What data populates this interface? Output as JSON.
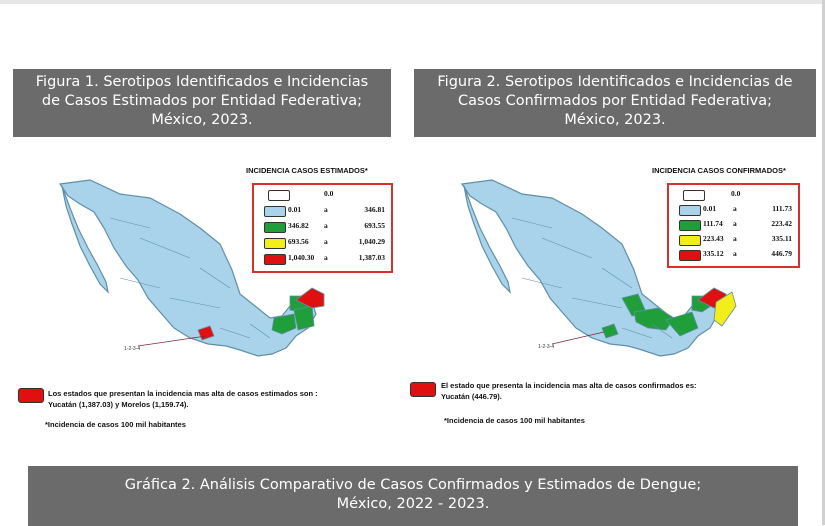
{
  "figure1": {
    "title_lines": [
      "Figura 1. Serotipos Identificados e Incidencias",
      "de Casos Estimados por Entidad Federativa;",
      "México, 2023."
    ],
    "legend_title": "INCIDENCIA CASOS ESTIMADOS*",
    "legend_rows": [
      {
        "color": "#ffffff",
        "low": "",
        "sep": "",
        "high": "",
        "zero": "0.0"
      },
      {
        "color": "#a9d3ea",
        "low": "0.01",
        "sep": "a",
        "high": "346.81"
      },
      {
        "color": "#1f9e3a",
        "low": "346.82",
        "sep": "a",
        "high": "693.55"
      },
      {
        "color": "#f2ee1a",
        "low": "693.56",
        "sep": "a",
        "high": "1,040.29"
      },
      {
        "color": "#e01010",
        "low": "1,040.30",
        "sep": "a",
        "high": "1,387.03"
      }
    ],
    "note_lines": [
      "Los estados  que presentan la incidencia mas alta de casos estimados son :",
      "Yucatán (1,387.03) y Morelos (1,159.74)."
    ],
    "footnote": "*Incidencia de casos 100 mil habitantes",
    "callout": "1-2-3-4"
  },
  "figure2": {
    "title_lines": [
      "Figura 2. Serotipos Identificados e Incidencias de",
      "Casos Confirmados por Entidad Federativa;",
      "México, 2023."
    ],
    "legend_title": "INCIDENCIA CASOS CONFIRMADOS*",
    "legend_rows": [
      {
        "color": "#ffffff",
        "low": "",
        "sep": "",
        "high": "",
        "zero": "0.0"
      },
      {
        "color": "#a9d3ea",
        "low": "0.01",
        "sep": "a",
        "high": "111.73"
      },
      {
        "color": "#1f9e3a",
        "low": "111.74",
        "sep": "a",
        "high": "223.42"
      },
      {
        "color": "#f2ee1a",
        "low": "223.43",
        "sep": "a",
        "high": "335.11"
      },
      {
        "color": "#e01010",
        "low": "335.12",
        "sep": "a",
        "high": "446.79"
      }
    ],
    "note_lines": [
      "El estado que presenta la incidencia mas alta de casos confirmados es:",
      "Yucatán (446.79)."
    ],
    "footnote": "*Incidencia de casos 100 mil habitantes",
    "callout": "1-2-3-4"
  },
  "grafica2": {
    "title_lines": [
      "Gráfica 2. Análisis Comparativo de Casos Confirmados y Estimados de Dengue;",
      "México, 2022 - 2023."
    ]
  },
  "colors": {
    "header_bg": "#6b6b6b",
    "map_base": "#a9d3ea",
    "map_border": "#5f8fa8",
    "green": "#1f9e3a",
    "yellow": "#f2ee1a",
    "red": "#e01010",
    "legend_border": "#d9302c"
  }
}
